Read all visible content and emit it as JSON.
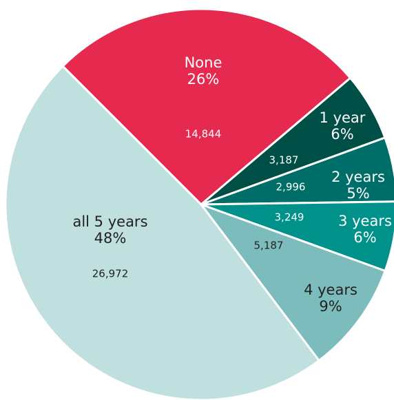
{
  "chart_data": {
    "type": "pie",
    "categories": [
      "None",
      "1 year",
      "2 years",
      "3 years",
      "4 years",
      "all 5 years"
    ],
    "values": [
      14844,
      3187,
      2996,
      3249,
      5187,
      26972
    ],
    "value_labels": [
      "14,844",
      "3,187",
      "2,996",
      "3,249",
      "5,187",
      "26,972"
    ],
    "percent_labels": [
      "26%",
      "6%",
      "5%",
      "6%",
      "9%",
      "48%"
    ],
    "colors": [
      "#e5294f",
      "#004f47",
      "#006e68",
      "#00918a",
      "#7cbcbc",
      "#c0e0df"
    ]
  }
}
